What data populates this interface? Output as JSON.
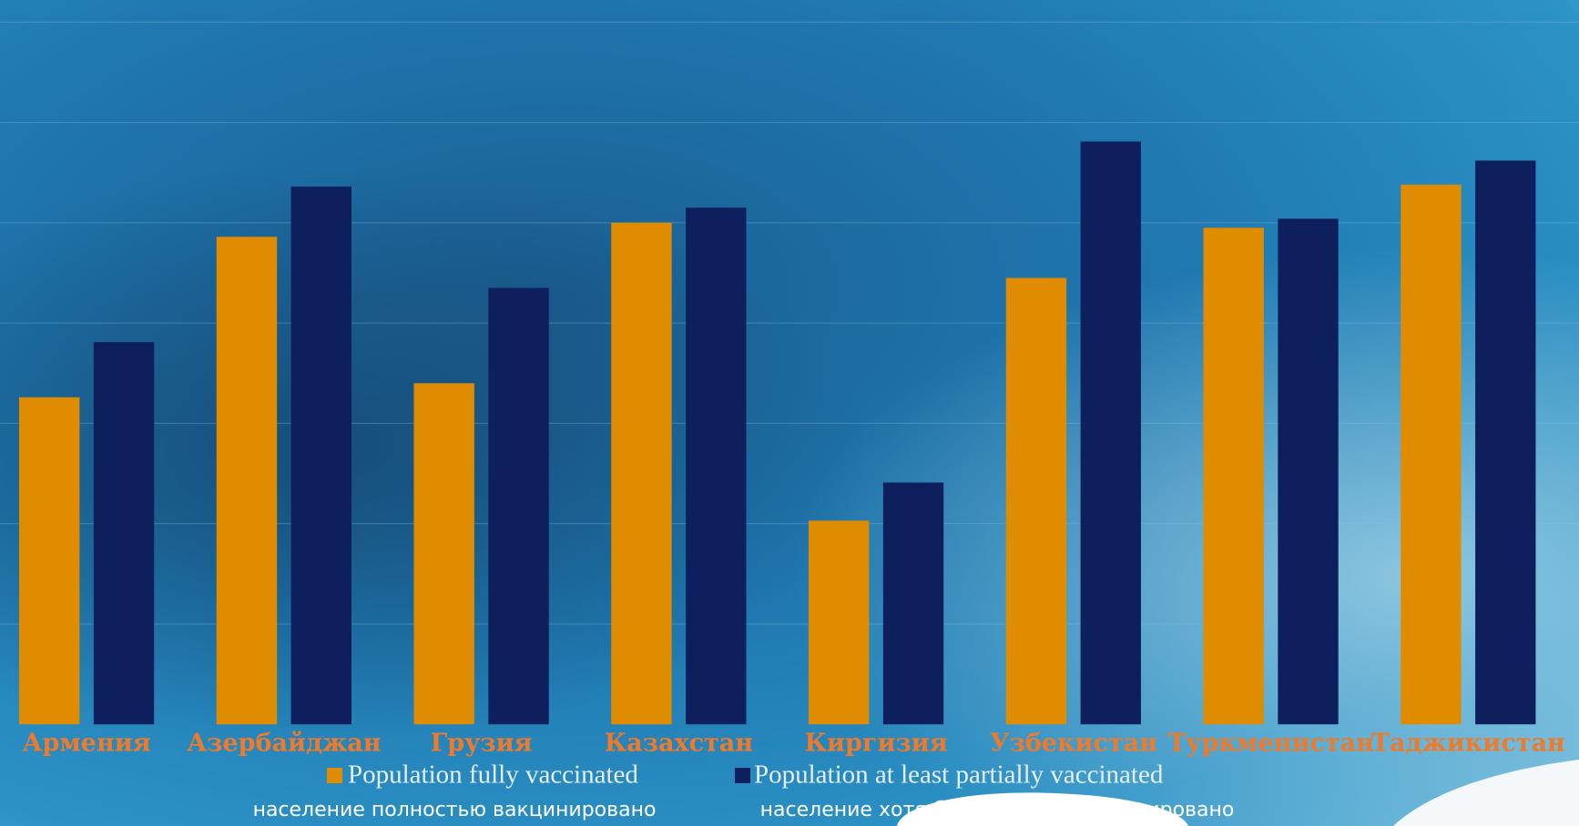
{
  "chart_data": {
    "type": "bar",
    "categories": [
      "Армения",
      "Азербайджан",
      "Грузия",
      "Казахстан",
      "Киргизия",
      "Узбекистан",
      "Туркменистан",
      "Таджикистан"
    ],
    "series": [
      {
        "name": "Population fully vaccinated",
        "color": "#e08c00",
        "values": [
          32.6,
          48.6,
          34.0,
          50.0,
          20.3,
          44.5,
          49.5,
          53.8
        ]
      },
      {
        "name": "Population at least partially vaccinated",
        "color": "#0d1f5c",
        "values": [
          38.1,
          53.6,
          43.5,
          51.5,
          24.1,
          58.1,
          50.4,
          56.2
        ]
      }
    ],
    "legend_subtitles": [
      "население полностью вакцинировано",
      "население хотя бы частично вакцинировано"
    ],
    "ylim": [
      0,
      70
    ],
    "yticks": [
      10,
      20,
      30,
      40,
      50,
      60,
      70
    ],
    "grid": true
  }
}
